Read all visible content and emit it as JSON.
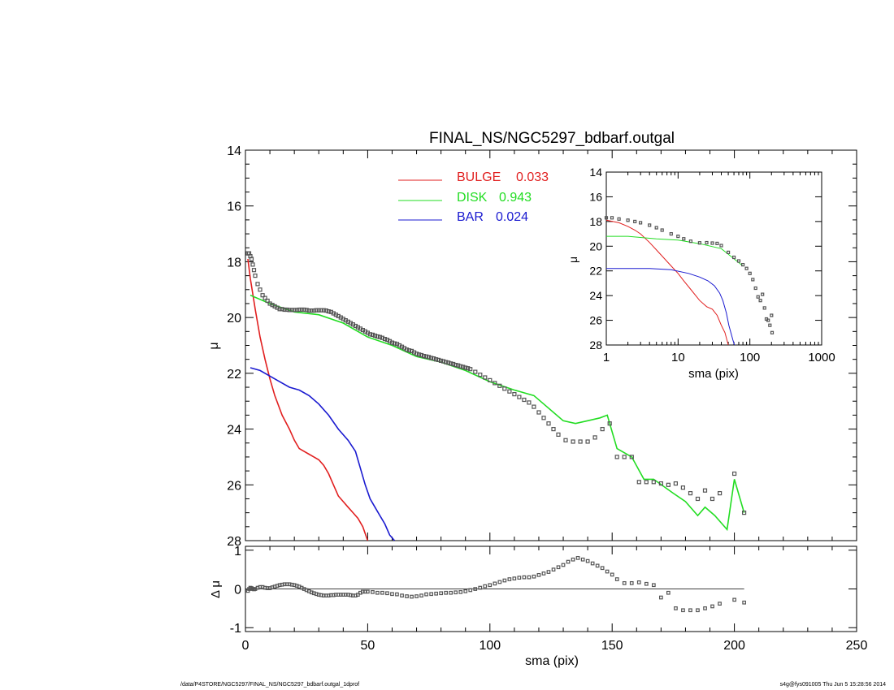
{
  "chart_data": [
    {
      "panel": "main",
      "type": "line",
      "title": "FINAL_NS/NGC5297_bdbarf.outgal",
      "xlabel": "",
      "ylabel": "μ",
      "xlim": [
        0,
        250
      ],
      "ylim": [
        28,
        14
      ],
      "y_inverted": true,
      "y_ticks": [
        "14",
        "16",
        "18",
        "20",
        "22",
        "24",
        "26",
        "28"
      ],
      "legend_position": "top-center",
      "series": [
        {
          "name": "BULGE",
          "fraction": "0.033",
          "color": "#e11f1f",
          "x": [
            1,
            2,
            4,
            6,
            8,
            10,
            12,
            15,
            18,
            20,
            22,
            24,
            26,
            28,
            30,
            32,
            34,
            36,
            38,
            40,
            42,
            44,
            46,
            48,
            50
          ],
          "y": [
            17.9,
            18.6,
            19.7,
            20.7,
            21.5,
            22.2,
            22.8,
            23.5,
            24.0,
            24.4,
            24.7,
            24.8,
            24.9,
            25.0,
            25.1,
            25.3,
            25.6,
            26.0,
            26.4,
            26.6,
            26.8,
            27.0,
            27.2,
            27.5,
            28.0
          ]
        },
        {
          "name": "DISK",
          "fraction": "0.943",
          "color": "#22dd22",
          "x": [
            2,
            10,
            20,
            30,
            40,
            50,
            60,
            70,
            80,
            90,
            100,
            110,
            118,
            122,
            130,
            135,
            140,
            145,
            148,
            152,
            158,
            163,
            167,
            175,
            180,
            185,
            188,
            192,
            197,
            200,
            204
          ],
          "y": [
            19.2,
            19.5,
            19.8,
            19.9,
            20.2,
            20.7,
            21.0,
            21.4,
            21.6,
            21.9,
            22.3,
            22.6,
            22.8,
            23.1,
            23.7,
            23.8,
            23.7,
            23.6,
            23.5,
            24.7,
            25.0,
            25.8,
            25.8,
            26.3,
            26.6,
            27.1,
            26.8,
            27.1,
            27.6,
            25.8,
            27.0
          ]
        },
        {
          "name": "BAR",
          "fraction": "0.024",
          "color": "#1a1ad0",
          "x": [
            2,
            6,
            10,
            14,
            18,
            22,
            26,
            30,
            34,
            38,
            42,
            45,
            47,
            49,
            51,
            53,
            55,
            57,
            59,
            61
          ],
          "y": [
            21.8,
            21.9,
            22.1,
            22.3,
            22.5,
            22.6,
            22.8,
            23.1,
            23.5,
            24.0,
            24.4,
            24.8,
            25.4,
            26.0,
            26.5,
            26.8,
            27.1,
            27.4,
            27.8,
            28.0
          ]
        }
      ],
      "data_points": {
        "name": "",
        "color": "#555555",
        "x": [
          1,
          1.5,
          2,
          2.5,
          3,
          3.5,
          4,
          5,
          6,
          7,
          8,
          9,
          10,
          11,
          12,
          13,
          14,
          15,
          16,
          17,
          18,
          19,
          20,
          21,
          22,
          23,
          24,
          25,
          26,
          27,
          28,
          29,
          30,
          31,
          32,
          33,
          34,
          35,
          36,
          37,
          38,
          39,
          40,
          41,
          42,
          43,
          44,
          45,
          46,
          47,
          48,
          49,
          50,
          51,
          52,
          53,
          54,
          55,
          56,
          57,
          58,
          59,
          60,
          61,
          62,
          63,
          64,
          65,
          66,
          67,
          68,
          69,
          70,
          71,
          72,
          73,
          74,
          75,
          76,
          77,
          78,
          79,
          80,
          81,
          82,
          83,
          84,
          85,
          86,
          87,
          88,
          89,
          90,
          91,
          92,
          94,
          96,
          98,
          100,
          102,
          104,
          106,
          108,
          110,
          112,
          114,
          116,
          118,
          120,
          122,
          124,
          126,
          128,
          131,
          134,
          137,
          140,
          143,
          146,
          149,
          152,
          155,
          158,
          161,
          164,
          167,
          170,
          173,
          176,
          179,
          182,
          185,
          188,
          191,
          194,
          200,
          204
        ],
        "y": [
          17.7,
          17.7,
          17.8,
          17.9,
          18.1,
          18.3,
          18.5,
          18.8,
          19.0,
          19.2,
          19.3,
          19.4,
          19.5,
          19.55,
          19.6,
          19.65,
          19.7,
          19.7,
          19.72,
          19.72,
          19.73,
          19.73,
          19.73,
          19.73,
          19.72,
          19.72,
          19.72,
          19.73,
          19.75,
          19.75,
          19.75,
          19.74,
          19.74,
          19.74,
          19.74,
          19.75,
          19.78,
          19.8,
          19.85,
          19.9,
          19.95,
          20.0,
          20.05,
          20.1,
          20.15,
          20.2,
          20.25,
          20.3,
          20.35,
          20.4,
          20.45,
          20.5,
          20.55,
          20.6,
          20.62,
          20.65,
          20.68,
          20.7,
          20.73,
          20.77,
          20.8,
          20.85,
          20.9,
          20.93,
          20.95,
          21.0,
          21.05,
          21.1,
          21.15,
          21.18,
          21.2,
          21.25,
          21.3,
          21.33,
          21.35,
          21.38,
          21.4,
          21.42,
          21.45,
          21.47,
          21.5,
          21.52,
          21.55,
          21.57,
          21.6,
          21.62,
          21.65,
          21.67,
          21.7,
          21.72,
          21.75,
          21.77,
          21.8,
          21.82,
          21.85,
          21.95,
          22.05,
          22.15,
          22.25,
          22.35,
          22.45,
          22.55,
          22.65,
          22.75,
          22.85,
          22.95,
          23.05,
          23.2,
          23.4,
          23.6,
          23.8,
          24.0,
          24.2,
          24.4,
          24.45,
          24.45,
          24.45,
          24.3,
          24.0,
          23.8,
          25.0,
          25.0,
          25.0,
          25.9,
          25.9,
          25.9,
          25.95,
          26.0,
          25.95,
          26.1,
          26.3,
          26.5,
          26.2,
          26.5,
          26.3,
          25.6,
          27.0
        ]
      }
    },
    {
      "panel": "inset",
      "type": "line",
      "xlabel": "sma (pix)",
      "ylabel": "μ",
      "x_scale": "log",
      "xlim": [
        1,
        1000
      ],
      "ylim": [
        28,
        14
      ],
      "y_inverted": true,
      "x_ticks": [
        "1",
        "10",
        "100",
        "1000"
      ],
      "y_ticks": [
        "14",
        "16",
        "18",
        "20",
        "22",
        "24",
        "26",
        "28"
      ],
      "series": [
        {
          "name": "BULGE",
          "color": "#e11f1f",
          "x": [
            1,
            1.5,
            2,
            2.5,
            3,
            4,
            5,
            6,
            8,
            10,
            12,
            15,
            20,
            25,
            30,
            35,
            40,
            45,
            50
          ],
          "y": [
            17.9,
            18.1,
            18.4,
            18.7,
            19.0,
            19.7,
            20.3,
            20.8,
            21.6,
            22.2,
            22.8,
            23.5,
            24.4,
            24.9,
            25.1,
            25.6,
            26.4,
            27.0,
            28.0
          ]
        },
        {
          "name": "DISK",
          "color": "#22dd22",
          "x": [
            1,
            2,
            5,
            10,
            20,
            40,
            80
          ],
          "y": [
            19.2,
            19.2,
            19.4,
            19.5,
            19.8,
            20.2,
            21.6
          ]
        },
        {
          "name": "BAR",
          "color": "#1a1ad0",
          "x": [
            1,
            2,
            4,
            8,
            14,
            20,
            26,
            32,
            38,
            42,
            47,
            51,
            55,
            58,
            61
          ],
          "y": [
            21.8,
            21.8,
            21.8,
            21.9,
            22.2,
            22.5,
            22.8,
            23.2,
            23.8,
            24.4,
            25.4,
            26.4,
            27.1,
            27.6,
            28.0
          ]
        }
      ],
      "data_points": {
        "name": "",
        "color": "#555555",
        "x": [
          1,
          1.2,
          1.5,
          2,
          2.5,
          3,
          4,
          5,
          6,
          8,
          10,
          12,
          15,
          20,
          25,
          30,
          35,
          40,
          50,
          60,
          70,
          80,
          90,
          100,
          110,
          120,
          130,
          140,
          150,
          160,
          170,
          180,
          190,
          200,
          204
        ],
        "y": [
          17.7,
          17.7,
          17.8,
          17.9,
          18.0,
          18.1,
          18.3,
          18.5,
          18.7,
          19.0,
          19.2,
          19.4,
          19.6,
          19.73,
          19.72,
          19.75,
          19.78,
          19.95,
          20.5,
          20.9,
          21.2,
          21.5,
          21.8,
          22.2,
          22.7,
          23.4,
          24.1,
          24.4,
          23.9,
          25.0,
          25.9,
          26.0,
          26.4,
          25.6,
          27.0
        ]
      }
    },
    {
      "panel": "residual",
      "type": "scatter",
      "xlabel": "sma (pix)",
      "ylabel": "Δ μ",
      "xlim": [
        0,
        250
      ],
      "ylim": [
        -1.1,
        1.1
      ],
      "x_ticks": [
        "0",
        "50",
        "100",
        "150",
        "200",
        "250"
      ],
      "y_ticks": [
        "1",
        "0",
        "-1"
      ],
      "reference_line": 0,
      "series": [
        {
          "name": "",
          "color": "#555555",
          "x": [
            1,
            1.5,
            2,
            2.5,
            3,
            3.5,
            4,
            5,
            6,
            7,
            8,
            9,
            10,
            11,
            12,
            13,
            14,
            15,
            16,
            17,
            18,
            19,
            20,
            21,
            22,
            23,
            24,
            25,
            26,
            27,
            28,
            29,
            30,
            31,
            32,
            33,
            34,
            35,
            36,
            37,
            38,
            39,
            40,
            41,
            42,
            43,
            44,
            45,
            46,
            47,
            48,
            49,
            50,
            52,
            54,
            56,
            58,
            60,
            62,
            64,
            66,
            68,
            70,
            72,
            74,
            76,
            78,
            80,
            82,
            84,
            86,
            88,
            90,
            92,
            94,
            96,
            98,
            100,
            102,
            104,
            106,
            108,
            110,
            112,
            114,
            116,
            118,
            120,
            122,
            124,
            126,
            128,
            130,
            132,
            134,
            136,
            138,
            140,
            142,
            144,
            146,
            148,
            150,
            152,
            155,
            158,
            161,
            164,
            167,
            170,
            173,
            176,
            179,
            182,
            185,
            188,
            191,
            194,
            200,
            204
          ],
          "y": [
            -0.05,
            0.0,
            0.03,
            0.02,
            0.0,
            -0.01,
            0.0,
            0.03,
            0.05,
            0.05,
            0.03,
            0.02,
            0.02,
            0.04,
            0.06,
            0.08,
            0.1,
            0.11,
            0.12,
            0.12,
            0.12,
            0.11,
            0.1,
            0.08,
            0.06,
            0.03,
            0.0,
            -0.03,
            -0.06,
            -0.09,
            -0.11,
            -0.13,
            -0.15,
            -0.16,
            -0.17,
            -0.17,
            -0.17,
            -0.16,
            -0.16,
            -0.15,
            -0.15,
            -0.15,
            -0.15,
            -0.15,
            -0.15,
            -0.16,
            -0.17,
            -0.17,
            -0.15,
            -0.1,
            -0.07,
            -0.07,
            -0.07,
            -0.08,
            -0.1,
            -0.1,
            -0.11,
            -0.13,
            -0.14,
            -0.17,
            -0.19,
            -0.2,
            -0.19,
            -0.17,
            -0.14,
            -0.13,
            -0.12,
            -0.11,
            -0.1,
            -0.1,
            -0.09,
            -0.08,
            -0.06,
            -0.03,
            0.0,
            0.03,
            0.07,
            0.1,
            0.14,
            0.18,
            0.22,
            0.25,
            0.27,
            0.29,
            0.3,
            0.3,
            0.32,
            0.36,
            0.4,
            0.44,
            0.5,
            0.56,
            0.62,
            0.7,
            0.76,
            0.8,
            0.76,
            0.72,
            0.66,
            0.6,
            0.54,
            0.45,
            0.37,
            0.25,
            0.15,
            0.15,
            0.17,
            0.13,
            0.1,
            -0.22,
            -0.1,
            -0.5,
            -0.55,
            -0.55,
            -0.55,
            -0.5,
            -0.45,
            -0.38,
            -0.28,
            -0.35
          ]
        }
      ]
    }
  ],
  "footer": {
    "left_text": "/data/P4STORE/NGC5297/FINAL_NS/NGC5297_bdbarf.outgal_1dprof",
    "right_text": "s4g@fys091005  Thu Jun  5 15:28:56 2014"
  }
}
